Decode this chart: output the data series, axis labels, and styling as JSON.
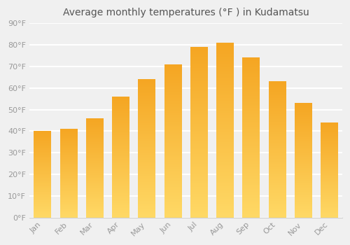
{
  "title": "Average monthly temperatures (°F ) in Kudamatsu",
  "months": [
    "Jan",
    "Feb",
    "Mar",
    "Apr",
    "May",
    "Jun",
    "Jul",
    "Aug",
    "Sep",
    "Oct",
    "Nov",
    "Dec"
  ],
  "values": [
    40,
    41,
    46,
    56,
    64,
    71,
    79,
    81,
    74,
    63,
    53,
    44
  ],
  "bar_color_top": "#F5A623",
  "bar_color_bottom": "#FFD966",
  "ylim": [
    0,
    90
  ],
  "yticks": [
    0,
    10,
    20,
    30,
    40,
    50,
    60,
    70,
    80,
    90
  ],
  "ytick_labels": [
    "0°F",
    "10°F",
    "20°F",
    "30°F",
    "40°F",
    "50°F",
    "60°F",
    "70°F",
    "80°F",
    "90°F"
  ],
  "background_color": "#f0f0f0",
  "grid_color": "#ffffff",
  "title_fontsize": 10,
  "tick_fontsize": 8,
  "bar_width": 0.65
}
